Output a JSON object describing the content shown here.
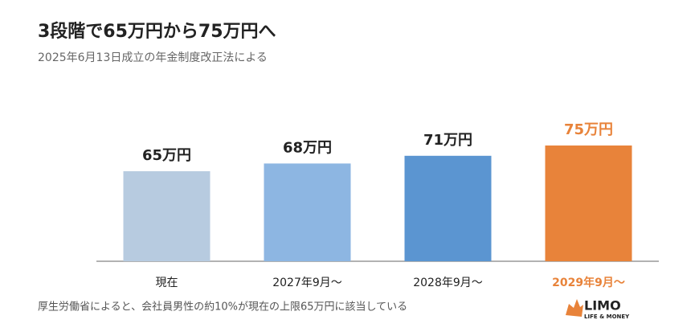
{
  "chart_data": {
    "type": "bar",
    "title": "3段階で65万円から75万円へ",
    "subtitle": "2025年6月13日成立の年金制度改正法による",
    "categories": [
      "現在",
      "2027年9月～",
      "2028年9月～",
      "2029年9月～"
    ],
    "values": [
      65,
      68,
      71,
      75
    ],
    "value_labels": [
      "65万円",
      "68万円",
      "71万円",
      "75万円"
    ],
    "colors": [
      "#b7cbe0",
      "#8db6e2",
      "#5b95d1",
      "#e8833a"
    ],
    "label_colors": [
      "#222222",
      "#222222",
      "#222222",
      "#e8833a"
    ],
    "ylim": [
      30,
      80
    ],
    "note": "厚生労働省によると、会社員男性の約10%が現在の上限65万円に該当している"
  },
  "logo": {
    "name": "LIMO",
    "tagline": "LIFE & MONEY"
  }
}
